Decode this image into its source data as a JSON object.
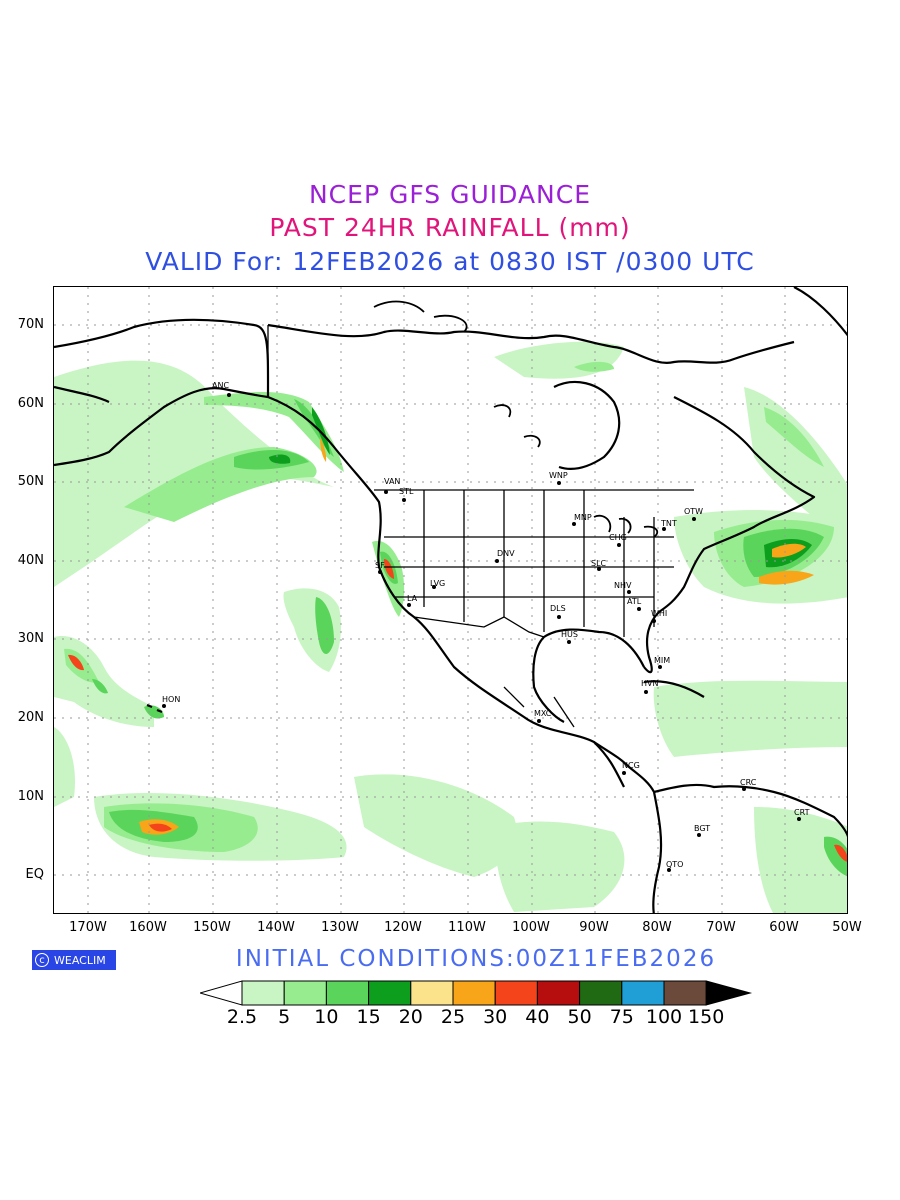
{
  "titles": {
    "line1": "NCEP GFS GUIDANCE",
    "line2": "PAST 24HR RAINFALL (mm)",
    "line3": "VALID For: 12FEB2026 at 0830 IST /0300 UTC"
  },
  "initial_conditions": "INITIAL CONDITIONS:00Z11FEB2026",
  "logo": {
    "text": "WEACLIM",
    "icon": "copyright-circle-icon"
  },
  "map": {
    "lat_labels": [
      "70N",
      "60N",
      "50N",
      "40N",
      "30N",
      "20N",
      "10N",
      "EQ"
    ],
    "lon_labels": [
      "170W",
      "160W",
      "150W",
      "140W",
      "130W",
      "120W",
      "110W",
      "100W",
      "90W",
      "80W",
      "70W",
      "60W",
      "50W"
    ],
    "cities": [
      {
        "name": "ANC"
      },
      {
        "name": "VAN"
      },
      {
        "name": "STL"
      },
      {
        "name": "WNP"
      },
      {
        "name": "MNP"
      },
      {
        "name": "OTW"
      },
      {
        "name": "TNT"
      },
      {
        "name": "CHG"
      },
      {
        "name": "DNV"
      },
      {
        "name": "SLC"
      },
      {
        "name": "LVG"
      },
      {
        "name": "LA"
      },
      {
        "name": "SF"
      },
      {
        "name": "NHV"
      },
      {
        "name": "ATL"
      },
      {
        "name": "WHI"
      },
      {
        "name": "DLS"
      },
      {
        "name": "HUS"
      },
      {
        "name": "MIM"
      },
      {
        "name": "HVN"
      },
      {
        "name": "HON"
      },
      {
        "name": "MXC"
      },
      {
        "name": "NCG"
      },
      {
        "name": "CRC"
      },
      {
        "name": "BGT"
      },
      {
        "name": "QTO"
      },
      {
        "name": "CRT"
      }
    ]
  },
  "legend": {
    "labels": [
      "2.5",
      "5",
      "10",
      "15",
      "20",
      "25",
      "30",
      "40",
      "50",
      "75",
      "100",
      "150"
    ],
    "colors": [
      "#c8f5c3",
      "#96ec8f",
      "#5ad45a",
      "#0e9e1e",
      "#fae38a",
      "#f9a51a",
      "#f4441b",
      "#b60e0e",
      "#1f6a13",
      "#1f9fd6",
      "#6b4a3c",
      "#000000"
    ]
  }
}
